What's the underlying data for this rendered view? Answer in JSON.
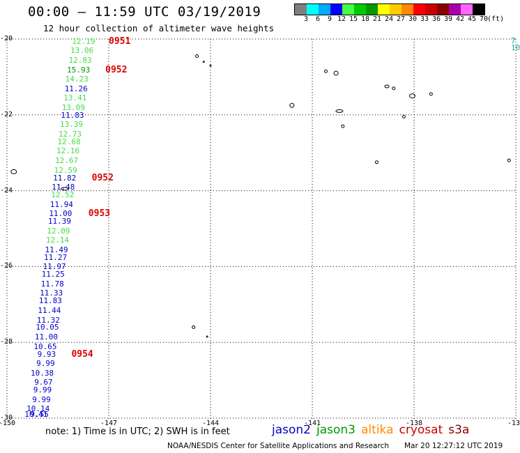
{
  "header": {
    "title": "00:00 – 11:59 UTC 03/19/2019",
    "subtitle": "12 hour collection of altimeter wave heights"
  },
  "scale": {
    "labels": [
      "3",
      "6",
      "9",
      "12",
      "15",
      "18",
      "21",
      "24",
      "27",
      "30",
      "33",
      "36",
      "39",
      "42",
      "45",
      "70",
      "(ft)"
    ],
    "colors": [
      "#7f7f7f",
      "#00ffff",
      "#00aaff",
      "#0000ff",
      "#44ff44",
      "#00cc00",
      "#009900",
      "#ffff00",
      "#ffcc00",
      "#ff8800",
      "#ff0000",
      "#cc0000",
      "#880000",
      "#aa00aa",
      "#ff66ff",
      "#000000"
    ]
  },
  "map": {
    "lat_labels": [
      "-20",
      "-22",
      "-24",
      "-26",
      "-28",
      "-30"
    ],
    "lon_labels": [
      "-150",
      "-147",
      "-144",
      "-141",
      "-138",
      "-13"
    ],
    "lat_range": [
      -30,
      -20
    ],
    "lon_range": [
      -150,
      -135
    ],
    "grid": "dotted"
  },
  "wave_heights": [
    {
      "text": "12.19",
      "color": "#44dd44",
      "lat": -20.05,
      "lon": -147.4
    },
    {
      "text": "13.06",
      "color": "#44dd44",
      "lat": -20.3,
      "lon": -147.45
    },
    {
      "text": "12.83",
      "color": "#44dd44",
      "lat": -20.55,
      "lon": -147.5
    },
    {
      "text": "15.93",
      "color": "#009900",
      "lat": -20.8,
      "lon": -147.55
    },
    {
      "text": "14.23",
      "color": "#44dd44",
      "lat": -21.05,
      "lon": -147.6
    },
    {
      "text": "11.26",
      "color": "#0000cc",
      "lat": -21.3,
      "lon": -147.62
    },
    {
      "text": "13.41",
      "color": "#44dd44",
      "lat": -21.55,
      "lon": -147.65
    },
    {
      "text": "13.09",
      "color": "#44dd44",
      "lat": -21.8,
      "lon": -147.7
    },
    {
      "text": "11.83",
      "color": "#0000cc",
      "lat": -22.0,
      "lon": -147.73
    },
    {
      "text": "13.39",
      "color": "#44dd44",
      "lat": -22.25,
      "lon": -147.76
    },
    {
      "text": "12.73",
      "color": "#44dd44",
      "lat": -22.5,
      "lon": -147.8
    },
    {
      "text": "12.68",
      "color": "#44dd44",
      "lat": -22.7,
      "lon": -147.83
    },
    {
      "text": "12.16",
      "color": "#44dd44",
      "lat": -22.95,
      "lon": -147.86
    },
    {
      "text": "12.67",
      "color": "#44dd44",
      "lat": -23.2,
      "lon": -147.9
    },
    {
      "text": "12.59",
      "color": "#44dd44",
      "lat": -23.45,
      "lon": -147.93
    },
    {
      "text": "11.82",
      "color": "#0000cc",
      "lat": -23.65,
      "lon": -147.96
    },
    {
      "text": "11.48",
      "color": "#0000cc",
      "lat": -23.9,
      "lon": -148.0
    },
    {
      "text": "12.52",
      "color": "#44dd44",
      "lat": -24.1,
      "lon": -148.02
    },
    {
      "text": "11.94",
      "color": "#0000cc",
      "lat": -24.35,
      "lon": -148.05
    },
    {
      "text": "11.00",
      "color": "#0000cc",
      "lat": -24.6,
      "lon": -148.08
    },
    {
      "text": "11.39",
      "color": "#0000cc",
      "lat": -24.8,
      "lon": -148.11
    },
    {
      "text": "12.09",
      "color": "#44dd44",
      "lat": -25.05,
      "lon": -148.14
    },
    {
      "text": "12.14",
      "color": "#44dd44",
      "lat": -25.3,
      "lon": -148.17
    },
    {
      "text": "11.49",
      "color": "#0000cc",
      "lat": -25.55,
      "lon": -148.2
    },
    {
      "text": "11.27",
      "color": "#0000cc",
      "lat": -25.75,
      "lon": -148.23
    },
    {
      "text": "11.97",
      "color": "#0000cc",
      "lat": -26.0,
      "lon": -148.26
    },
    {
      "text": "11.25",
      "color": "#0000cc",
      "lat": -26.2,
      "lon": -148.3
    },
    {
      "text": "11.78",
      "color": "#0000cc",
      "lat": -26.45,
      "lon": -148.32
    },
    {
      "text": "11.33",
      "color": "#0000cc",
      "lat": -26.7,
      "lon": -148.35
    },
    {
      "text": "11.83",
      "color": "#0000cc",
      "lat": -26.9,
      "lon": -148.38
    },
    {
      "text": "11.44",
      "color": "#0000cc",
      "lat": -27.15,
      "lon": -148.41
    },
    {
      "text": "11.32",
      "color": "#0000cc",
      "lat": -27.4,
      "lon": -148.44
    },
    {
      "text": "10.05",
      "color": "#0000cc",
      "lat": -27.6,
      "lon": -148.47
    },
    {
      "text": "11.00",
      "color": "#0000cc",
      "lat": -27.85,
      "lon": -148.5
    },
    {
      "text": "10.65",
      "color": "#0000cc",
      "lat": -28.1,
      "lon": -148.53
    },
    {
      "text": "9.93",
      "color": "#0000cc",
      "lat": -28.3,
      "lon": -148.56
    },
    {
      "text": "9.99",
      "color": "#0000cc",
      "lat": -28.55,
      "lon": -148.59
    },
    {
      "text": "10.38",
      "color": "#0000cc",
      "lat": -28.8,
      "lon": -148.62
    },
    {
      "text": "9.67",
      "color": "#0000cc",
      "lat": -29.05,
      "lon": -148.65
    },
    {
      "text": "9.99",
      "color": "#0000cc",
      "lat": -29.25,
      "lon": -148.68
    },
    {
      "text": "9.99",
      "color": "#0000cc",
      "lat": -29.5,
      "lon": -148.71
    },
    {
      "text": "10.14",
      "color": "#0000cc",
      "lat": -29.75,
      "lon": -148.74
    },
    {
      "text": "9.55",
      "color": "#0000cc",
      "lat": -29.95,
      "lon": -148.77
    },
    {
      "text": "10.41",
      "color": "#0000cc",
      "lat": -30.2,
      "lon": -148.8
    }
  ],
  "time_marks": [
    {
      "text": "0951",
      "lat": -20.05,
      "lon": -147.0
    },
    {
      "text": "0952",
      "lat": -20.8,
      "lon": -147.1
    },
    {
      "text": "0952",
      "lat": -23.65,
      "lon": -147.5
    },
    {
      "text": "0953",
      "lat": -24.6,
      "lon": -147.6
    },
    {
      "text": "0954",
      "lat": -28.3,
      "lon": -148.1
    }
  ],
  "edge_label": "7\n10",
  "note": "note: 1) Time is in UTC; 2) SWH is in feet",
  "legend": [
    {
      "name": "jason2",
      "color": "#0000cc"
    },
    {
      "name": "jason3",
      "color": "#009900"
    },
    {
      "name": "altika",
      "color": "#ff8800"
    },
    {
      "name": "cryosat",
      "color": "#cc0000"
    },
    {
      "name": "s3a",
      "color": "#880000"
    }
  ],
  "footer": "NOAA/NESDIS Center for Satellite Applications and Research",
  "timestamp": "Mar 20 12:27:12 UTC 2019"
}
